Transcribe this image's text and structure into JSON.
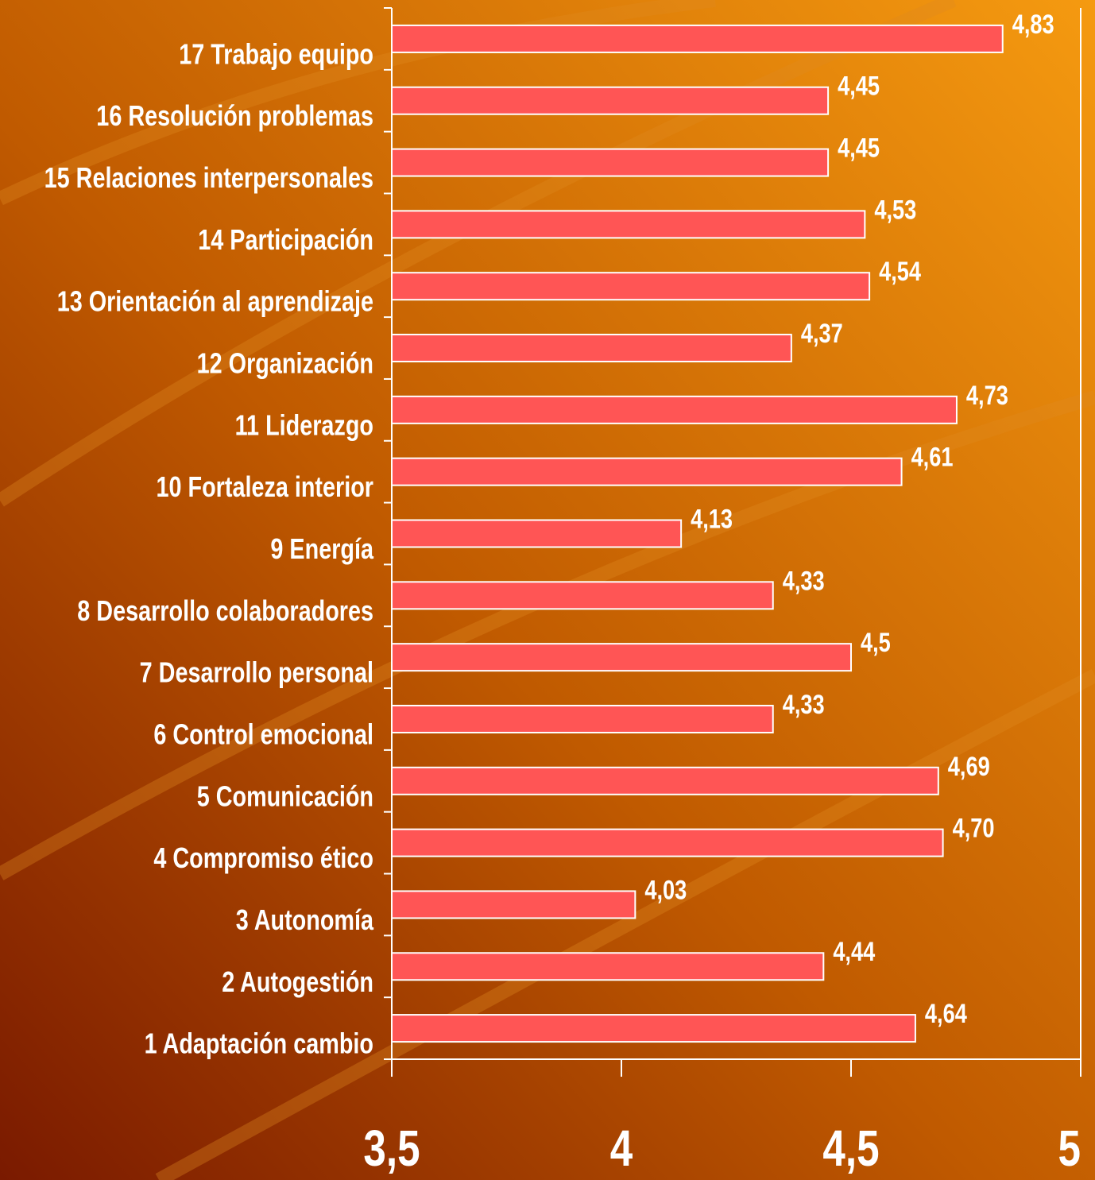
{
  "chart_data": {
    "type": "barh",
    "categories": [
      "1 Adaptación cambio",
      "2 Autogestión",
      "3 Autonomía",
      "4 Compromiso ético",
      "5 Comunicación",
      "6 Control emocional",
      "7 Desarrollo personal",
      "8 Desarrollo colaboradores",
      "9 Energía",
      "10 Fortaleza interior",
      "11 Liderazgo",
      "12 Organización",
      "13 Orientación al aprendizaje",
      "14 Participación",
      "15 Relaciones interpersonales",
      "16 Resolución problemas",
      "17 Trabajo equipo"
    ],
    "values": [
      4.64,
      4.44,
      4.03,
      4.7,
      4.69,
      4.33,
      4.5,
      4.33,
      4.13,
      4.61,
      4.73,
      4.37,
      4.54,
      4.53,
      4.45,
      4.45,
      4.83
    ],
    "value_labels": [
      "4,64",
      "4,44",
      "4,03",
      "4,70",
      "4,69",
      "4,33",
      "4,5",
      "4,33",
      "4,13",
      "4,61",
      "4,73",
      "4,37",
      "4,54",
      "4,53",
      "4,45",
      "4,45",
      "4,83"
    ],
    "color": "#ff5555",
    "xlim": [
      3.5,
      5
    ],
    "xticks": [
      {
        "value": 3.5,
        "label": "3,5"
      },
      4,
      {
        "value": 4.5,
        "label": "4,5"
      },
      5
    ]
  }
}
